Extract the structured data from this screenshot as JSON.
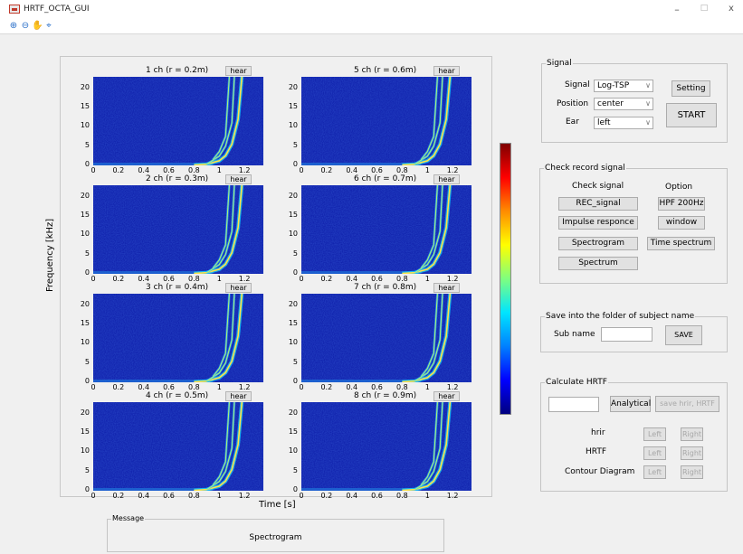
{
  "window": {
    "title": "HRTF_OCTA_GUI",
    "minimize": "–",
    "maximize": "□",
    "close": "x"
  },
  "toolbar": {
    "icons": [
      "zoom-in-icon",
      "zoom-out-icon",
      "pan-icon",
      "data-cursor-icon"
    ]
  },
  "subplots": [
    {
      "title": "1 ch (r = 0.2m)",
      "hear": "hear"
    },
    {
      "title": "5 ch (r = 0.6m)",
      "hear": "hear"
    },
    {
      "title": "2 ch (r = 0.3m)",
      "hear": "hear"
    },
    {
      "title": "6 ch (r = 0.7m)",
      "hear": "hear"
    },
    {
      "title": "3 ch (r = 0.4m)",
      "hear": "hear"
    },
    {
      "title": "7 ch (r = 0.8m)",
      "hear": "hear"
    },
    {
      "title": "4 ch (r = 0.5m)",
      "hear": "hear"
    },
    {
      "title": "8 ch (r = 0.9m)",
      "hear": "hear"
    }
  ],
  "axes": {
    "xlabel": "Time [s]",
    "ylabel": "Frequency [kHz]",
    "yticks": [
      "20",
      "15",
      "10",
      "5",
      "0"
    ],
    "xticks": [
      "0",
      "0.2",
      "0.4",
      "0.6",
      "0.8",
      "1",
      "1.2"
    ]
  },
  "signal": {
    "title": "Signal",
    "signal_label": "Signal",
    "signal_value": "Log-TSP",
    "position_label": "Position",
    "position_value": "center",
    "ear_label": "Ear",
    "ear_value": "left",
    "setting": "Setting",
    "start": "START"
  },
  "check": {
    "title": "Check record signal",
    "check_signal_label": "Check signal",
    "option_label": "Option",
    "rec_signal": "REC_signal",
    "impulse": "Impulse responce",
    "spectrogram": "Spectrogram",
    "spectrum": "Spectrum",
    "hpf": "HPF 200Hz",
    "window": "window",
    "time_spectrum": "Time spectrum"
  },
  "save": {
    "title": "Save into the folder of subject name",
    "sub_name_label": "Sub name",
    "sub_name_value": "",
    "save": "SAVE"
  },
  "hrtf": {
    "title": "Calculate HRTF",
    "input_value": "",
    "analytical": "Analytical",
    "save_hrir": "save hrir, HRTF",
    "hrir_label": "hrir",
    "hrtf_label": "HRTF",
    "contour_label": "Contour Diagram",
    "left": "Left",
    "right": "Right"
  },
  "message": {
    "title": "Message",
    "text": "Spectrogram"
  },
  "chart_data": {
    "type": "heatmap",
    "panels": [
      "1 ch (r = 0.2m)",
      "5 ch (r = 0.6m)",
      "2 ch (r = 0.3m)",
      "6 ch (r = 0.7m)",
      "3 ch (r = 0.4m)",
      "7 ch (r = 0.8m)",
      "4 ch (r = 0.5m)",
      "8 ch (r = 0.9m)"
    ],
    "xlabel": "Time [s]",
    "ylabel": "Frequency [kHz]",
    "xlim": [
      0,
      1.35
    ],
    "ylim": [
      0,
      23
    ],
    "sweep_curves": [
      {
        "harmonic": 1,
        "t": [
          0.8,
          0.9,
          1.0,
          1.05,
          1.1,
          1.15,
          1.18
        ],
        "f_khz": [
          0.1,
          0.3,
          1.2,
          2.5,
          5.5,
          12,
          23
        ]
      },
      {
        "harmonic": 2,
        "t": [
          0.9,
          1.0,
          1.05,
          1.1,
          1.12
        ],
        "f_khz": [
          0.3,
          2.4,
          5,
          11,
          23
        ]
      },
      {
        "harmonic": 3,
        "t": [
          0.95,
          1.0,
          1.05,
          1.08
        ],
        "f_khz": [
          1.5,
          3.6,
          7.5,
          23
        ]
      }
    ],
    "colormap": "jet"
  }
}
